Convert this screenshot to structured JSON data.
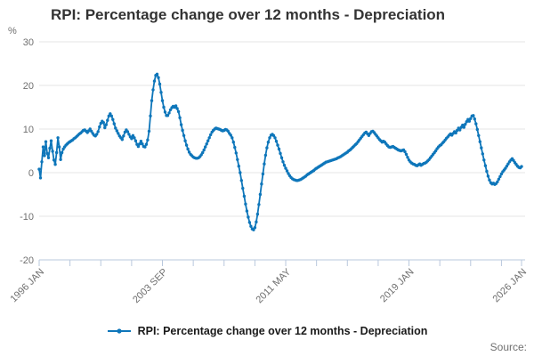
{
  "title": "RPI: Percentage change over 12 months - Depreciation",
  "legend": {
    "label": "RPI: Percentage change over 12 months - Depreciation"
  },
  "source_label": "Source:",
  "colors": {
    "line": "#0e76ba",
    "grid": "#e4e4e4",
    "axis": "#b9c8dd",
    "tick_label": "#6f6f6f",
    "title": "#333333"
  },
  "chart_data": {
    "type": "line",
    "title": "RPI: Percentage change over 12 months - Depreciation",
    "xlabel": "",
    "ylabel": "%",
    "ylim": [
      -20,
      30
    ],
    "yticks": [
      30,
      20,
      10,
      0,
      -10,
      -20
    ],
    "grid": "horizontal",
    "legend_position": "bottom",
    "x_start_month": "1996-01",
    "x_total_months": 360,
    "minor_tick_months": [
      0,
      23,
      46,
      69,
      92,
      115,
      138,
      161,
      184,
      207,
      230,
      253,
      276,
      299,
      322,
      345,
      360
    ],
    "labeled_ticks": [
      {
        "month": 0,
        "label": "1996 JAN"
      },
      {
        "month": 92,
        "label": "2003 SEP"
      },
      {
        "month": 184,
        "label": "2011 MAY"
      },
      {
        "month": 276,
        "label": "2019 JAN"
      },
      {
        "month": 360,
        "label": "2026 JAN"
      }
    ],
    "series": [
      {
        "name": "RPI: Percentage change over 12 months - Depreciation",
        "color": "#0e76ba",
        "monthly_values": [
          0.8,
          -1.2,
          2.5,
          5.9,
          3.9,
          7.1,
          4.4,
          3.4,
          5.6,
          7.3,
          4.9,
          2.9,
          1.9,
          4.6,
          8.0,
          5.9,
          3.0,
          4.6,
          5.4,
          5.9,
          6.3,
          6.6,
          6.9,
          7.1,
          7.3,
          7.5,
          7.8,
          8.0,
          8.3,
          8.6,
          8.9,
          9.1,
          9.4,
          9.7,
          9.8,
          9.5,
          9.2,
          9.6,
          10.0,
          9.5,
          9.0,
          8.6,
          8.4,
          8.8,
          9.4,
          10.5,
          11.3,
          11.8,
          11.5,
          10.3,
          11.0,
          12.0,
          13.0,
          13.5,
          13.0,
          12.2,
          11.2,
          10.2,
          9.6,
          9.0,
          8.4,
          8.0,
          7.6,
          8.4,
          9.3,
          9.8,
          9.4,
          8.8,
          8.2,
          7.8,
          8.5,
          8.0,
          7.3,
          6.5,
          6.0,
          6.6,
          7.2,
          6.6,
          6.0,
          5.9,
          6.5,
          7.5,
          9.5,
          13.0,
          16.5,
          19.0,
          21.0,
          22.3,
          22.6,
          21.8,
          20.3,
          18.4,
          16.5,
          15.0,
          13.9,
          13.1,
          13.1,
          13.7,
          14.4,
          14.9,
          15.2,
          15.0,
          15.3,
          14.7,
          14.0,
          12.6,
          11.0,
          9.7,
          8.5,
          7.3,
          6.3,
          5.4,
          4.7,
          4.2,
          3.9,
          3.6,
          3.4,
          3.3,
          3.3,
          3.4,
          3.7,
          4.1,
          4.6,
          5.2,
          5.9,
          6.6,
          7.3,
          8.0,
          8.7,
          9.3,
          9.7,
          10.0,
          10.2,
          10.1,
          10.0,
          9.9,
          9.7,
          9.6,
          9.7,
          9.9,
          9.8,
          9.5,
          9.0,
          8.6,
          8.0,
          7.0,
          5.8,
          4.5,
          3.0,
          1.5,
          0.0,
          -1.8,
          -3.6,
          -5.4,
          -7.2,
          -8.8,
          -10.2,
          -11.4,
          -12.3,
          -12.9,
          -13.1,
          -12.6,
          -11.3,
          -9.5,
          -7.3,
          -5.0,
          -2.6,
          -0.3,
          2.0,
          4.0,
          5.7,
          7.0,
          8.0,
          8.6,
          8.8,
          8.5,
          8.0,
          7.2,
          6.3,
          5.4,
          4.4,
          3.4,
          2.5,
          1.7,
          1.0,
          0.4,
          -0.2,
          -0.7,
          -1.1,
          -1.4,
          -1.6,
          -1.7,
          -1.8,
          -1.8,
          -1.7,
          -1.6,
          -1.4,
          -1.2,
          -1.0,
          -0.8,
          -0.5,
          -0.3,
          -0.1,
          0.1,
          0.3,
          0.5,
          0.8,
          1.0,
          1.2,
          1.4,
          1.6,
          1.8,
          2.0,
          2.2,
          2.4,
          2.5,
          2.6,
          2.7,
          2.8,
          2.9,
          3.0,
          3.1,
          3.2,
          3.4,
          3.5,
          3.7,
          3.9,
          4.1,
          4.3,
          4.5,
          4.7,
          5.0,
          5.2,
          5.5,
          5.8,
          6.1,
          6.4,
          6.7,
          7.1,
          7.5,
          7.9,
          8.3,
          8.7,
          9.1,
          9.3,
          8.9,
          8.5,
          9.0,
          9.4,
          9.5,
          9.2,
          8.8,
          8.4,
          8.0,
          7.6,
          7.3,
          7.0,
          7.2,
          7.0,
          6.6,
          6.2,
          5.9,
          5.8,
          5.9,
          6.0,
          5.8,
          5.6,
          5.4,
          5.2,
          5.1,
          5.0,
          5.1,
          5.2,
          4.8,
          4.2,
          3.5,
          2.9,
          2.5,
          2.2,
          2.0,
          1.9,
          1.7,
          1.6,
          1.8,
          2.0,
          1.7,
          1.9,
          2.1,
          2.2,
          2.4,
          2.7,
          3.0,
          3.4,
          3.8,
          4.2,
          4.6,
          5.0,
          5.5,
          5.9,
          6.2,
          6.4,
          6.8,
          7.1,
          7.5,
          7.9,
          8.2,
          8.6,
          8.9,
          8.6,
          9.0,
          9.4,
          9.1,
          9.7,
          10.2,
          9.8,
          10.4,
          10.9,
          10.4,
          11.1,
          11.7,
          12.2,
          11.8,
          12.4,
          13.0,
          13.1,
          12.3,
          11.2,
          9.9,
          8.5,
          7.1,
          5.7,
          4.3,
          2.9,
          1.6,
          0.3,
          -0.8,
          -1.7,
          -2.3,
          -2.6,
          -2.4,
          -2.7,
          -2.5,
          -2.1,
          -1.5,
          -0.9,
          -0.3,
          0.2,
          0.6,
          1.0,
          1.5,
          2.0,
          2.5,
          2.9,
          3.2,
          2.8,
          2.3,
          1.9,
          1.5,
          1.2,
          1.1,
          1.4
        ]
      }
    ]
  }
}
